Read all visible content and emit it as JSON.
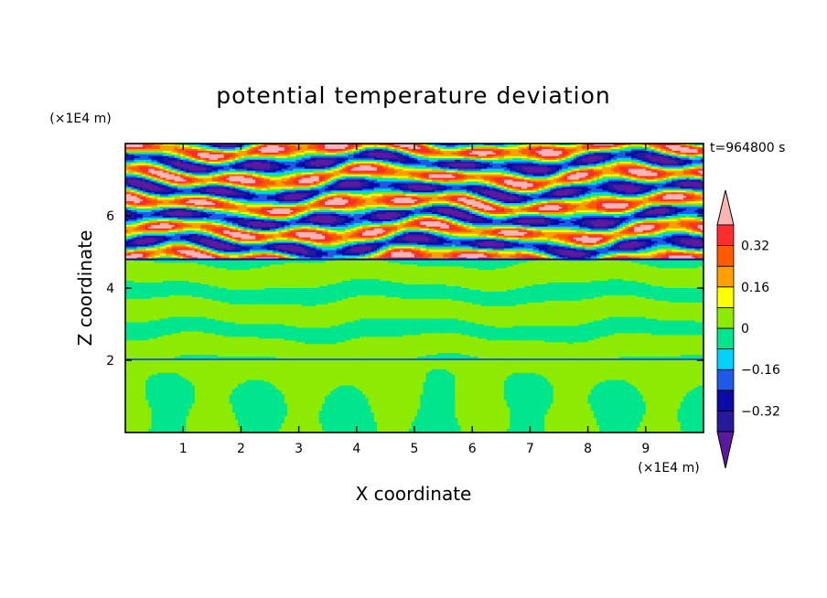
{
  "chart_data": {
    "type": "heatmap",
    "title": "potential temperature deviation",
    "xlabel": "X coordinate",
    "ylabel": "Z coordinate",
    "x_unit": "(×1E4 m)",
    "y_unit": "(×1E4 m)",
    "time_label": "t=964800 s",
    "xlim": [
      0,
      10
    ],
    "ylim": [
      0,
      8
    ],
    "x_ticks": [
      "1",
      "2",
      "3",
      "4",
      "5",
      "6",
      "7",
      "8",
      "9"
    ],
    "y_ticks": [
      "2",
      "4",
      "6"
    ],
    "colorbar": {
      "labels": [
        "0.32",
        "0.16",
        "0",
        "−0.16",
        "−0.32"
      ],
      "label_values": [
        0.32,
        0.16,
        0,
        -0.16,
        -0.32
      ],
      "levels": [
        -0.4,
        -0.32,
        -0.24,
        -0.16,
        -0.08,
        0,
        0.08,
        0.16,
        0.24,
        0.32,
        0.4
      ],
      "colors": [
        "#5a1aa0",
        "#28189a",
        "#0a0aa8",
        "#1e5ae6",
        "#00d2ff",
        "#00e68c",
        "#8ceb00",
        "#ffff00",
        "#ffa000",
        "#ff5a00",
        "#ff2d2d",
        "#ffb4b4"
      ],
      "extend": "both"
    },
    "regions": [
      {
        "zmin": 0,
        "zmax": 2,
        "description_values": [
          -0.08,
          0.08
        ]
      },
      {
        "zmin": 2,
        "zmax": 4.8,
        "description_values": [
          -0.08,
          0.08
        ]
      },
      {
        "zmin": 4.8,
        "zmax": 8,
        "description_values": [
          -0.4,
          0.4
        ]
      }
    ]
  }
}
